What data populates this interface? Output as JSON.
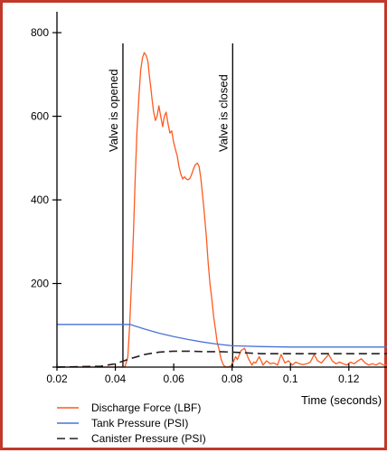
{
  "chart_data": {
    "type": "line",
    "title": "",
    "xlabel": "Time (seconds)",
    "ylabel": "",
    "xlim": [
      0.02,
      0.134
    ],
    "ylim": [
      0,
      850
    ],
    "xticks": [
      0.02,
      0.04,
      0.06,
      0.08,
      0.1,
      0.12
    ],
    "xtick_labels": [
      "0.02",
      "0.04",
      "0.06",
      "0.08",
      "0.1",
      "0.12"
    ],
    "yticks": [
      0,
      200,
      400,
      600,
      800
    ],
    "ytick_labels": [
      "200",
      "400",
      "600",
      "800"
    ],
    "grid": false,
    "legend_position": "bottom-left",
    "annotations": [
      {
        "text": "Valve is opened",
        "x": 0.0426
      },
      {
        "text": "Valve is closed",
        "x": 0.0802
      }
    ],
    "series": [
      {
        "name": "Discharge Force (LBF)",
        "color": "#ff5a1f",
        "style": "solid",
        "x": [
          0.02,
          0.0432,
          0.0437,
          0.0443,
          0.0449,
          0.0456,
          0.0462,
          0.0468,
          0.0474,
          0.0481,
          0.0487,
          0.0493,
          0.0499,
          0.0506,
          0.0512,
          0.0516,
          0.0521,
          0.0526,
          0.0531,
          0.0537,
          0.0543,
          0.0549,
          0.0556,
          0.0562,
          0.0568,
          0.0574,
          0.0581,
          0.0587,
          0.0593,
          0.0599,
          0.0606,
          0.0612,
          0.0618,
          0.0624,
          0.0631,
          0.0637,
          0.0643,
          0.0649,
          0.0656,
          0.0662,
          0.0668,
          0.0674,
          0.0681,
          0.0687,
          0.0693,
          0.0699,
          0.0706,
          0.0712,
          0.0718,
          0.0724,
          0.0731,
          0.0737,
          0.0743,
          0.0749,
          0.0756,
          0.0762,
          0.0768,
          0.0774,
          0.0781,
          0.0787,
          0.0793,
          0.0799,
          0.0806,
          0.0812,
          0.0818,
          0.0831,
          0.0843,
          0.0856,
          0.0868,
          0.0874,
          0.0881,
          0.0893,
          0.0906,
          0.0918,
          0.0931,
          0.0943,
          0.0956,
          0.0968,
          0.0981,
          0.0993,
          0.1006,
          0.1018,
          0.1031,
          0.1043,
          0.1056,
          0.1068,
          0.1081,
          0.1093,
          0.1106,
          0.1118,
          0.1131,
          0.1143,
          0.1156,
          0.1168,
          0.1181,
          0.1193,
          0.1206,
          0.1218,
          0.1231,
          0.1243,
          0.1256,
          0.1268,
          0.1281,
          0.1293,
          0.1306,
          0.1318,
          0.1331
        ],
        "y": [
          0,
          0,
          10,
          25,
          100,
          210,
          320,
          450,
          560,
          650,
          710,
          740,
          752,
          745,
          730,
          700,
          672,
          640,
          612,
          590,
          600,
          625,
          598,
          575,
          600,
          610,
          580,
          560,
          565,
          540,
          520,
          505,
          480,
          462,
          450,
          455,
          450,
          448,
          452,
          462,
          475,
          484,
          488,
          480,
          452,
          410,
          360,
          310,
          250,
          200,
          160,
          120,
          90,
          60,
          40,
          20,
          8,
          2,
          0,
          0,
          2,
          5,
          15,
          25,
          18,
          40,
          45,
          20,
          5,
          12,
          10,
          25,
          5,
          15,
          8,
          10,
          5,
          30,
          10,
          15,
          5,
          12,
          8,
          6,
          8,
          12,
          30,
          15,
          10,
          20,
          30,
          15,
          8,
          12,
          8,
          5,
          12,
          8,
          15,
          20,
          10,
          5,
          8,
          5,
          10,
          5,
          5
        ]
      },
      {
        "name": "Tank Pressure (PSI)",
        "color": "#4a72d6",
        "style": "solid",
        "x": [
          0.02,
          0.045,
          0.05,
          0.055,
          0.06,
          0.065,
          0.07,
          0.075,
          0.08,
          0.09,
          0.1,
          0.11,
          0.12,
          0.134
        ],
        "y": [
          102,
          102,
          91,
          81,
          73,
          66,
          60,
          55,
          51,
          49,
          48,
          48,
          48,
          48
        ]
      },
      {
        "name": "Canister Pressure (PSI)",
        "color": "#222222",
        "style": "dashed",
        "x": [
          0.02,
          0.035,
          0.04,
          0.045,
          0.05,
          0.055,
          0.06,
          0.065,
          0.07,
          0.075,
          0.08,
          0.09,
          0.1,
          0.11,
          0.12,
          0.134
        ],
        "y": [
          0,
          2,
          8,
          20,
          30,
          36,
          38,
          38,
          37,
          37,
          36,
          32,
          32,
          32,
          32,
          32
        ]
      }
    ]
  }
}
